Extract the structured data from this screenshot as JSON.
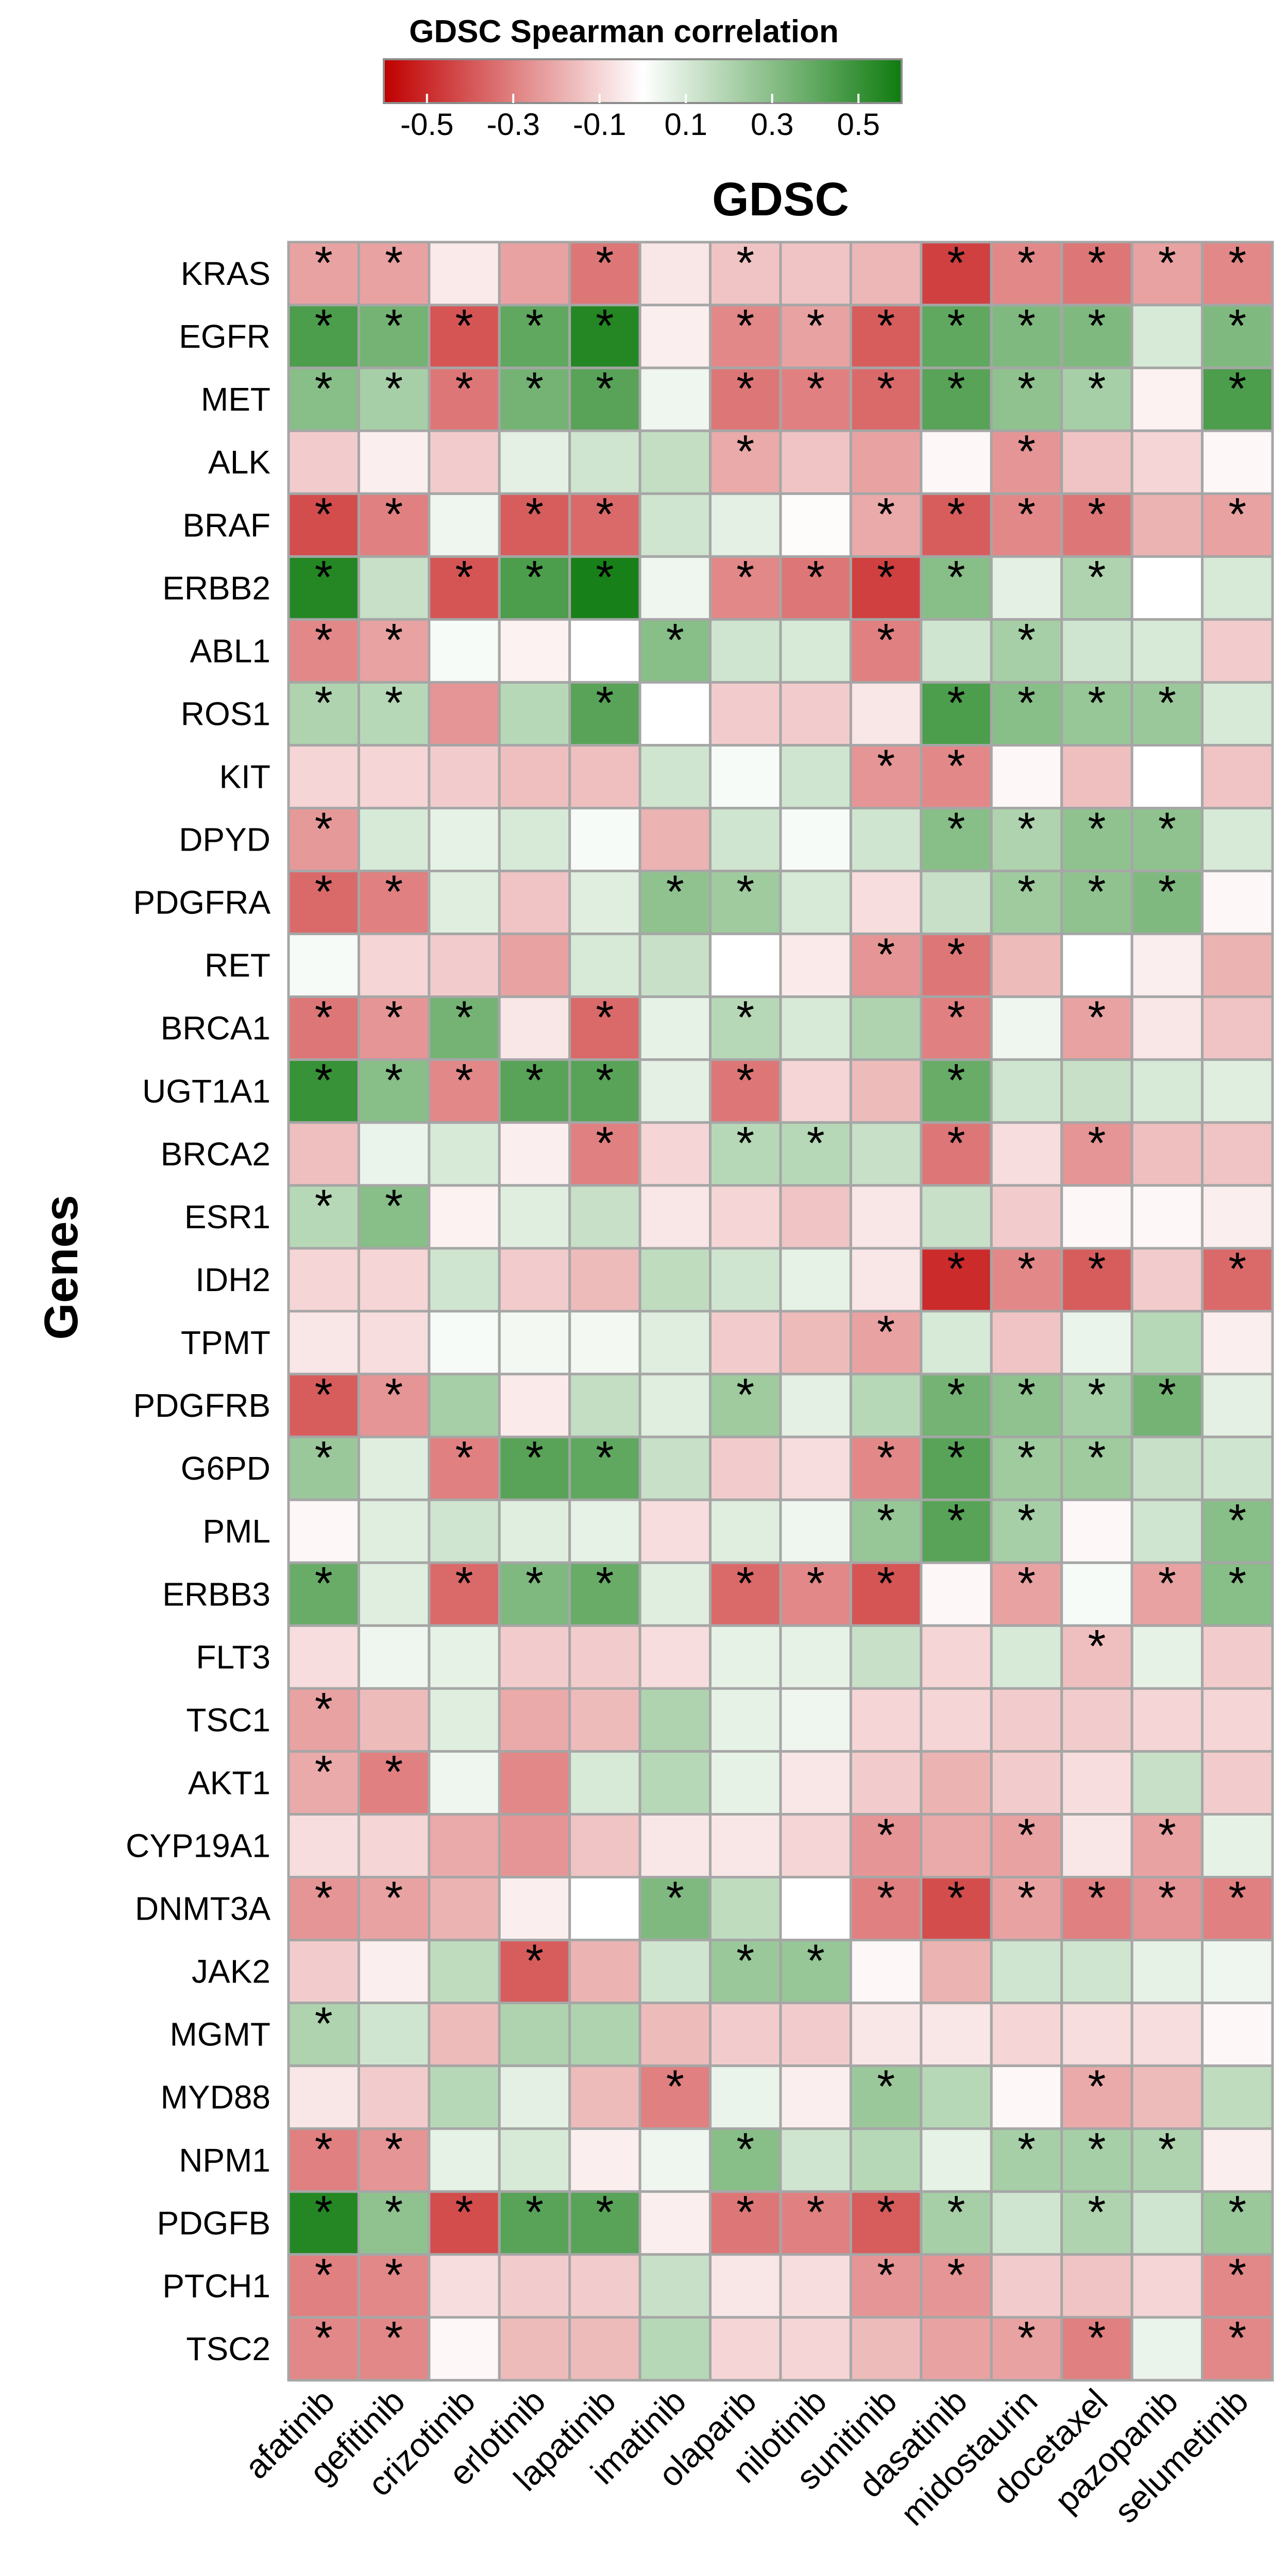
{
  "chart_data": {
    "type": "heatmap",
    "title": "GDSC",
    "xlabel": "",
    "ylabel": "Genes",
    "colorbar": {
      "title": "GDSC Spearman correlation",
      "ticks": [
        "-0.5",
        "-0.3",
        "-0.1",
        "0.1",
        "0.3",
        "0.5"
      ],
      "tick_values": [
        -0.5,
        -0.3,
        -0.1,
        0.1,
        0.3,
        0.5
      ],
      "range": [
        -0.6,
        0.6
      ],
      "low_color": "#c00000",
      "mid_color": "#ffffff",
      "high_color": "#107c10"
    },
    "significance_marker": "*",
    "x_categories": [
      "afatinib",
      "gefitinib",
      "crizotinib",
      "erlotinib",
      "lapatinib",
      "imatinib",
      "olaparib",
      "nilotinib",
      "sunitinib",
      "dasatinib",
      "midostaurin",
      "docetaxel",
      "pazopanib",
      "selumetinib"
    ],
    "y_categories": [
      "KRAS",
      "EGFR",
      "MET",
      "ALK",
      "BRAF",
      "ERBB2",
      "ABL1",
      "ROS1",
      "KIT",
      "DPYD",
      "PDGFRA",
      "RET",
      "BRCA1",
      "UGT1A1",
      "BRCA2",
      "ESR1",
      "IDH2",
      "TPMT",
      "PDGFRB",
      "G6PD",
      "PML",
      "ERBB3",
      "FLT3",
      "TSC1",
      "AKT1",
      "CYP19A1",
      "DNMT3A",
      "JAK2",
      "MGMT",
      "MYD88",
      "NPM1",
      "PDGFB",
      "PTCH1",
      "TSC2"
    ],
    "values": [
      [
        -0.22,
        -0.22,
        -0.05,
        -0.22,
        -0.32,
        -0.06,
        -0.14,
        -0.14,
        -0.17,
        -0.45,
        -0.28,
        -0.32,
        -0.22,
        -0.28
      ],
      [
        0.45,
        0.35,
        -0.4,
        0.4,
        0.55,
        -0.04,
        -0.28,
        -0.22,
        -0.38,
        0.4,
        0.32,
        0.32,
        0.1,
        0.32
      ],
      [
        0.3,
        0.22,
        -0.32,
        0.35,
        0.42,
        0.04,
        -0.32,
        -0.3,
        -0.35,
        0.42,
        0.28,
        0.22,
        -0.03,
        0.45
      ],
      [
        -0.12,
        -0.04,
        -0.12,
        0.07,
        0.12,
        0.15,
        -0.2,
        -0.14,
        -0.22,
        -0.02,
        -0.25,
        -0.14,
        -0.1,
        -0.02
      ],
      [
        -0.42,
        -0.3,
        0.04,
        -0.38,
        -0.35,
        0.12,
        0.07,
        -0.01,
        -0.2,
        -0.38,
        -0.28,
        -0.32,
        -0.18,
        -0.22
      ],
      [
        0.55,
        0.14,
        -0.4,
        0.45,
        0.58,
        0.04,
        -0.28,
        -0.32,
        -0.45,
        0.3,
        0.07,
        0.2,
        0.0,
        0.1
      ],
      [
        -0.28,
        -0.22,
        0.02,
        -0.03,
        0.0,
        0.3,
        0.12,
        0.1,
        -0.3,
        0.12,
        0.22,
        0.12,
        0.1,
        -0.12
      ],
      [
        0.2,
        0.18,
        -0.25,
        0.18,
        0.42,
        0.0,
        -0.12,
        -0.12,
        -0.06,
        0.45,
        0.3,
        0.26,
        0.25,
        0.1
      ],
      [
        -0.1,
        -0.1,
        -0.12,
        -0.15,
        -0.15,
        0.12,
        0.02,
        0.12,
        -0.25,
        -0.28,
        -0.02,
        -0.15,
        0.0,
        -0.14
      ],
      [
        -0.24,
        0.1,
        0.06,
        0.1,
        0.02,
        -0.18,
        0.12,
        0.02,
        0.12,
        0.3,
        0.2,
        0.28,
        0.28,
        0.1
      ],
      [
        -0.35,
        -0.3,
        0.08,
        -0.14,
        0.08,
        0.28,
        0.24,
        0.1,
        -0.08,
        0.14,
        0.24,
        0.28,
        0.32,
        -0.02
      ],
      [
        0.02,
        -0.1,
        -0.12,
        -0.22,
        0.1,
        0.14,
        0.0,
        -0.05,
        -0.25,
        -0.32,
        -0.16,
        0.0,
        -0.04,
        -0.18
      ],
      [
        -0.32,
        -0.25,
        0.35,
        -0.06,
        -0.35,
        0.06,
        0.18,
        0.1,
        0.2,
        -0.3,
        0.04,
        -0.22,
        -0.06,
        -0.14
      ],
      [
        0.5,
        0.3,
        -0.28,
        0.42,
        0.42,
        0.07,
        -0.32,
        -0.1,
        -0.16,
        0.38,
        0.12,
        0.14,
        0.1,
        0.08
      ],
      [
        -0.15,
        0.05,
        0.1,
        -0.04,
        -0.3,
        -0.1,
        0.18,
        0.18,
        0.14,
        -0.32,
        -0.08,
        -0.25,
        -0.15,
        -0.14
      ],
      [
        0.18,
        0.3,
        -0.03,
        0.08,
        0.14,
        -0.06,
        -0.1,
        -0.14,
        -0.06,
        0.14,
        -0.12,
        -0.02,
        -0.02,
        -0.04
      ],
      [
        -0.1,
        -0.1,
        0.12,
        -0.12,
        -0.16,
        0.16,
        0.12,
        0.06,
        -0.06,
        -0.5,
        -0.28,
        -0.38,
        -0.12,
        -0.35
      ],
      [
        -0.06,
        -0.08,
        0.02,
        0.03,
        0.03,
        0.08,
        -0.12,
        -0.16,
        -0.22,
        0.1,
        -0.14,
        0.05,
        0.18,
        -0.04
      ],
      [
        -0.38,
        -0.25,
        0.22,
        -0.05,
        0.15,
        0.08,
        0.24,
        0.07,
        0.18,
        0.35,
        0.28,
        0.22,
        0.35,
        0.07
      ],
      [
        0.25,
        0.08,
        -0.3,
        0.42,
        0.4,
        0.14,
        -0.12,
        -0.08,
        -0.28,
        0.42,
        0.24,
        0.24,
        0.14,
        0.12
      ],
      [
        -0.02,
        0.08,
        0.12,
        0.08,
        0.06,
        -0.08,
        0.08,
        0.04,
        0.26,
        0.42,
        0.22,
        -0.02,
        0.12,
        0.3
      ],
      [
        0.38,
        0.08,
        -0.35,
        0.32,
        0.38,
        0.08,
        -0.35,
        -0.28,
        -0.4,
        -0.02,
        -0.22,
        0.02,
        -0.22,
        0.3
      ],
      [
        -0.08,
        0.04,
        0.06,
        -0.12,
        -0.12,
        -0.08,
        0.06,
        0.06,
        0.14,
        -0.1,
        0.1,
        -0.15,
        0.06,
        -0.12
      ],
      [
        -0.22,
        -0.16,
        0.08,
        -0.2,
        -0.16,
        0.2,
        0.06,
        0.04,
        -0.1,
        -0.1,
        -0.12,
        -0.12,
        -0.1,
        -0.1
      ],
      [
        -0.2,
        -0.3,
        0.04,
        -0.28,
        0.1,
        0.18,
        0.06,
        -0.06,
        -0.12,
        -0.18,
        -0.12,
        -0.08,
        0.14,
        -0.12
      ],
      [
        -0.08,
        -0.1,
        -0.2,
        -0.25,
        -0.14,
        -0.06,
        -0.06,
        -0.1,
        -0.25,
        -0.2,
        -0.22,
        -0.06,
        -0.22,
        0.06
      ],
      [
        -0.25,
        -0.22,
        -0.18,
        -0.04,
        0.0,
        0.32,
        0.16,
        0.0,
        -0.3,
        -0.42,
        -0.22,
        -0.3,
        -0.25,
        -0.3
      ],
      [
        -0.12,
        -0.04,
        0.16,
        -0.38,
        -0.18,
        0.12,
        0.25,
        0.26,
        -0.02,
        -0.18,
        0.12,
        0.12,
        0.06,
        0.04
      ],
      [
        0.2,
        0.12,
        -0.16,
        0.2,
        0.2,
        -0.16,
        -0.12,
        -0.12,
        -0.06,
        -0.06,
        -0.1,
        -0.08,
        -0.08,
        -0.02
      ],
      [
        -0.06,
        -0.12,
        0.18,
        0.07,
        -0.16,
        -0.3,
        0.05,
        -0.04,
        0.25,
        0.18,
        -0.02,
        -0.2,
        -0.16,
        0.16
      ],
      [
        -0.3,
        -0.25,
        0.06,
        0.1,
        -0.04,
        0.04,
        0.3,
        0.12,
        0.18,
        0.06,
        0.22,
        0.22,
        0.2,
        -0.04
      ],
      [
        0.55,
        0.28,
        -0.42,
        0.42,
        0.42,
        -0.04,
        -0.32,
        -0.3,
        -0.38,
        0.22,
        0.12,
        0.2,
        0.12,
        0.25
      ],
      [
        -0.3,
        -0.28,
        -0.08,
        -0.12,
        -0.12,
        0.14,
        -0.06,
        -0.08,
        -0.25,
        -0.25,
        -0.12,
        -0.14,
        -0.1,
        -0.28
      ],
      [
        -0.28,
        -0.28,
        -0.02,
        -0.16,
        -0.16,
        0.18,
        -0.1,
        -0.1,
        -0.16,
        -0.22,
        -0.22,
        -0.3,
        0.05,
        -0.28
      ]
    ],
    "significant": [
      [
        1,
        1,
        0,
        0,
        1,
        0,
        1,
        0,
        0,
        1,
        1,
        1,
        1,
        1
      ],
      [
        1,
        1,
        1,
        1,
        1,
        0,
        1,
        1,
        1,
        1,
        1,
        1,
        0,
        1
      ],
      [
        1,
        1,
        1,
        1,
        1,
        0,
        1,
        1,
        1,
        1,
        1,
        1,
        0,
        1
      ],
      [
        0,
        0,
        0,
        0,
        0,
        0,
        1,
        0,
        0,
        0,
        1,
        0,
        0,
        0
      ],
      [
        1,
        1,
        0,
        1,
        1,
        0,
        0,
        0,
        1,
        1,
        1,
        1,
        0,
        1
      ],
      [
        1,
        0,
        1,
        1,
        1,
        0,
        1,
        1,
        1,
        1,
        0,
        1,
        0,
        0
      ],
      [
        1,
        1,
        0,
        0,
        0,
        1,
        0,
        0,
        1,
        0,
        1,
        0,
        0,
        0
      ],
      [
        1,
        1,
        0,
        0,
        1,
        0,
        0,
        0,
        0,
        1,
        1,
        1,
        1,
        0
      ],
      [
        0,
        0,
        0,
        0,
        0,
        0,
        0,
        0,
        1,
        1,
        0,
        0,
        0,
        0
      ],
      [
        1,
        0,
        0,
        0,
        0,
        0,
        0,
        0,
        0,
        1,
        1,
        1,
        1,
        0
      ],
      [
        1,
        1,
        0,
        0,
        0,
        1,
        1,
        0,
        0,
        0,
        1,
        1,
        1,
        0
      ],
      [
        0,
        0,
        0,
        0,
        0,
        0,
        0,
        0,
        1,
        1,
        0,
        0,
        0,
        0
      ],
      [
        1,
        1,
        1,
        0,
        1,
        0,
        1,
        0,
        0,
        1,
        0,
        1,
        0,
        0
      ],
      [
        1,
        1,
        1,
        1,
        1,
        0,
        1,
        0,
        0,
        1,
        0,
        0,
        0,
        0
      ],
      [
        0,
        0,
        0,
        0,
        1,
        0,
        1,
        1,
        0,
        1,
        0,
        1,
        0,
        0
      ],
      [
        1,
        1,
        0,
        0,
        0,
        0,
        0,
        0,
        0,
        0,
        0,
        0,
        0,
        0
      ],
      [
        0,
        0,
        0,
        0,
        0,
        0,
        0,
        0,
        0,
        1,
        1,
        1,
        0,
        1
      ],
      [
        0,
        0,
        0,
        0,
        0,
        0,
        0,
        0,
        1,
        0,
        0,
        0,
        0,
        0
      ],
      [
        1,
        1,
        0,
        0,
        0,
        0,
        1,
        0,
        0,
        1,
        1,
        1,
        1,
        0
      ],
      [
        1,
        0,
        1,
        1,
        1,
        0,
        0,
        0,
        1,
        1,
        1,
        1,
        0,
        0
      ],
      [
        0,
        0,
        0,
        0,
        0,
        0,
        0,
        0,
        1,
        1,
        1,
        0,
        0,
        1
      ],
      [
        1,
        0,
        1,
        1,
        1,
        0,
        1,
        1,
        1,
        0,
        1,
        0,
        1,
        1
      ],
      [
        0,
        0,
        0,
        0,
        0,
        0,
        0,
        0,
        0,
        0,
        0,
        1,
        0,
        0
      ],
      [
        1,
        0,
        0,
        0,
        0,
        0,
        0,
        0,
        0,
        0,
        0,
        0,
        0,
        0
      ],
      [
        1,
        1,
        0,
        0,
        0,
        0,
        0,
        0,
        0,
        0,
        0,
        0,
        0,
        0
      ],
      [
        0,
        0,
        0,
        0,
        0,
        0,
        0,
        0,
        1,
        0,
        1,
        0,
        1,
        0
      ],
      [
        1,
        1,
        0,
        0,
        0,
        1,
        0,
        0,
        1,
        1,
        1,
        1,
        1,
        1
      ],
      [
        0,
        0,
        0,
        1,
        0,
        0,
        1,
        1,
        0,
        0,
        0,
        0,
        0,
        0
      ],
      [
        1,
        0,
        0,
        0,
        0,
        0,
        0,
        0,
        0,
        0,
        0,
        0,
        0,
        0
      ],
      [
        0,
        0,
        0,
        0,
        0,
        1,
        0,
        0,
        1,
        0,
        0,
        1,
        0,
        0
      ],
      [
        1,
        1,
        0,
        0,
        0,
        0,
        1,
        0,
        0,
        0,
        1,
        1,
        1,
        0
      ],
      [
        1,
        1,
        1,
        1,
        1,
        0,
        1,
        1,
        1,
        1,
        0,
        1,
        0,
        1
      ],
      [
        1,
        1,
        0,
        0,
        0,
        0,
        0,
        0,
        1,
        1,
        0,
        0,
        0,
        1
      ],
      [
        1,
        1,
        0,
        0,
        0,
        0,
        0,
        0,
        0,
        0,
        1,
        1,
        0,
        1
      ]
    ]
  }
}
